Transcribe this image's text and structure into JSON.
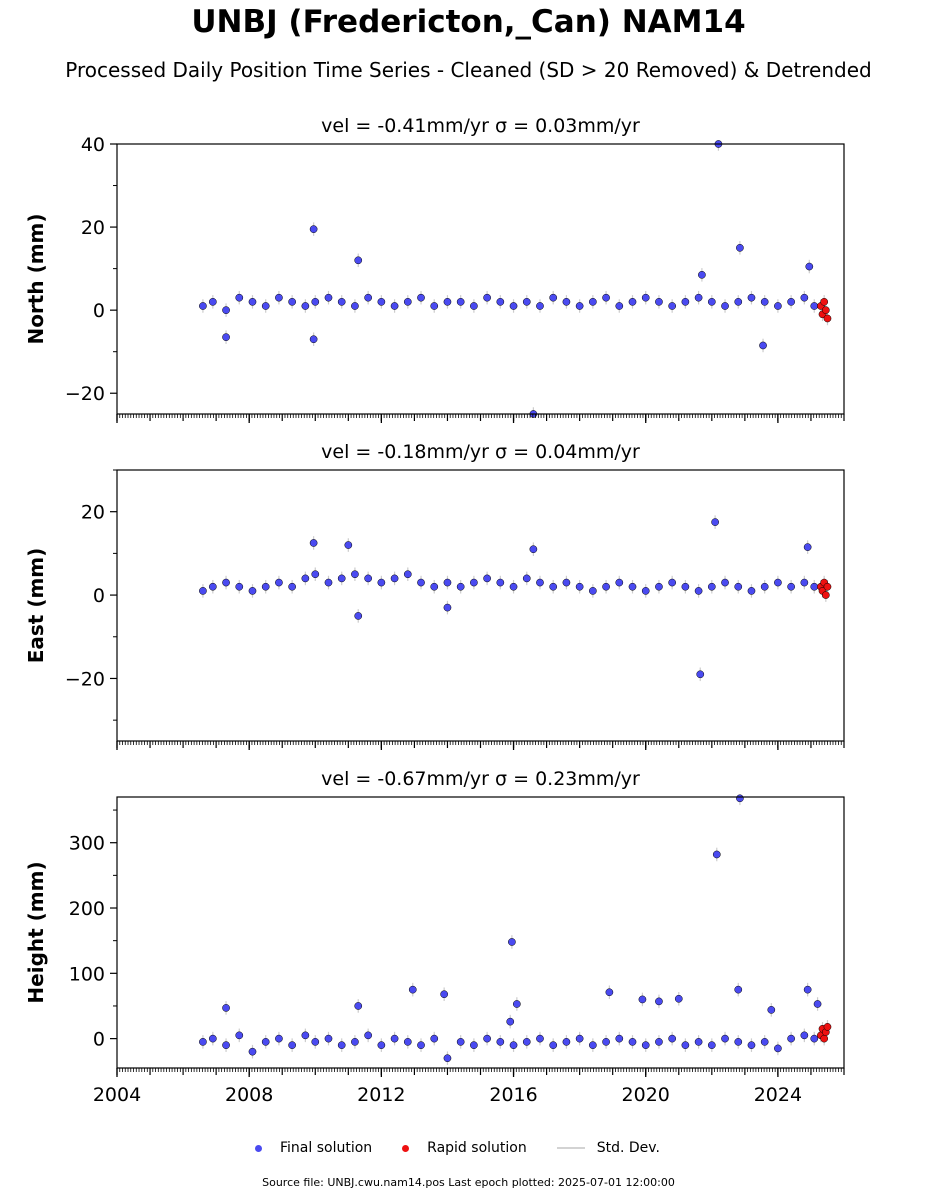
{
  "title": "UNBJ (Fredericton,_Can) NAM14",
  "subtitle": "Processed Daily Position Time Series - Cleaned (SD > 20 Removed) & Detrended",
  "footer": "Source file: UNBJ.cwu.nam14.pos  Last epoch plotted: 2025-07-01 12:00:00",
  "legend": {
    "final": "Final solution",
    "rapid": "Rapid solution",
    "std": "Std. Dev."
  },
  "colors": {
    "final": "#4a4af0",
    "rapid": "#ee1111",
    "std": "#cccccc",
    "edge": "#000000"
  },
  "chart_data": [
    {
      "type": "scatter",
      "title": "vel = -0.41mm/yr   σ = 0.03mm/yr",
      "ylabel": "North (mm)",
      "xlim": [
        2004.0,
        2026.0
      ],
      "ylim": [
        -25,
        40
      ],
      "yticks": [
        -20,
        0,
        20,
        40
      ],
      "xticks": [
        2004,
        2008,
        2012,
        2016,
        2020,
        2024
      ],
      "show_xtick_labels": false,
      "series": [
        {
          "name": "Final solution",
          "x": [
            2006.6,
            2006.9,
            2007.3,
            2007.7,
            2008.1,
            2008.5,
            2008.9,
            2009.3,
            2009.7,
            2010.0,
            2010.4,
            2010.8,
            2011.2,
            2011.6,
            2012.0,
            2012.4,
            2012.8,
            2013.2,
            2013.6,
            2014.0,
            2014.4,
            2014.8,
            2015.2,
            2015.6,
            2016.0,
            2016.4,
            2016.8,
            2017.2,
            2017.6,
            2018.0,
            2018.4,
            2018.8,
            2019.2,
            2019.6,
            2020.0,
            2020.4,
            2020.8,
            2021.2,
            2021.6,
            2022.0,
            2022.4,
            2022.8,
            2023.2,
            2023.6,
            2024.0,
            2024.4,
            2024.8,
            2025.1,
            2009.95,
            2011.3,
            2022.2,
            2022.85,
            2021.7,
            2009.95,
            2007.3,
            2016.6,
            2023.55,
            2024.95
          ],
          "y": [
            1,
            2,
            0,
            3,
            2,
            1,
            3,
            2,
            1,
            2,
            3,
            2,
            1,
            3,
            2,
            1,
            2,
            3,
            1,
            2,
            2,
            1,
            3,
            2,
            1,
            2,
            1,
            3,
            2,
            1,
            2,
            3,
            1,
            2,
            3,
            2,
            1,
            2,
            3,
            2,
            1,
            2,
            3,
            2,
            1,
            2,
            3,
            1,
            19.5,
            12,
            40,
            15,
            8.5,
            -7,
            -6.5,
            -25,
            -8.5,
            10.5
          ]
        },
        {
          "name": "Rapid solution",
          "x": [
            2025.3,
            2025.35,
            2025.4,
            2025.45,
            2025.5
          ],
          "y": [
            1,
            -1,
            2,
            0,
            -2
          ]
        }
      ]
    },
    {
      "type": "scatter",
      "title": "vel = -0.18mm/yr   σ = 0.04mm/yr",
      "ylabel": "East (mm)",
      "xlim": [
        2004.0,
        2026.0
      ],
      "ylim": [
        -35,
        30
      ],
      "yticks": [
        -20,
        0,
        20
      ],
      "xticks": [
        2004,
        2008,
        2012,
        2016,
        2020,
        2024
      ],
      "show_xtick_labels": false,
      "series": [
        {
          "name": "Final solution",
          "x": [
            2006.6,
            2006.9,
            2007.3,
            2007.7,
            2008.1,
            2008.5,
            2008.9,
            2009.3,
            2009.7,
            2010.0,
            2010.4,
            2010.8,
            2011.2,
            2011.6,
            2012.0,
            2012.4,
            2012.8,
            2013.2,
            2013.6,
            2014.0,
            2014.4,
            2014.8,
            2015.2,
            2015.6,
            2016.0,
            2016.4,
            2016.8,
            2017.2,
            2017.6,
            2018.0,
            2018.4,
            2018.8,
            2019.2,
            2019.6,
            2020.0,
            2020.4,
            2020.8,
            2021.2,
            2021.6,
            2022.0,
            2022.4,
            2022.8,
            2023.2,
            2023.6,
            2024.0,
            2024.4,
            2024.8,
            2025.1,
            2009.95,
            2011.0,
            2016.6,
            2022.1,
            2021.65,
            2011.3,
            2024.9,
            2014.0
          ],
          "y": [
            1,
            2,
            3,
            2,
            1,
            2,
            3,
            2,
            4,
            5,
            3,
            4,
            5,
            4,
            3,
            4,
            5,
            3,
            2,
            3,
            2,
            3,
            4,
            3,
            2,
            4,
            3,
            2,
            3,
            2,
            1,
            2,
            3,
            2,
            1,
            2,
            3,
            2,
            1,
            2,
            3,
            2,
            1,
            2,
            3,
            2,
            3,
            2,
            12.5,
            12,
            11,
            17.5,
            -19,
            -5,
            11.5,
            -3
          ]
        },
        {
          "name": "Rapid solution",
          "x": [
            2025.3,
            2025.35,
            2025.4,
            2025.45,
            2025.5
          ],
          "y": [
            2,
            1,
            3,
            0,
            2
          ]
        }
      ]
    },
    {
      "type": "scatter",
      "title": "vel = -0.67mm/yr   σ = 0.23mm/yr",
      "ylabel": "Height (mm)",
      "xlim": [
        2004.0,
        2026.0
      ],
      "ylim": [
        -45,
        370
      ],
      "yticks": [
        0,
        100,
        200,
        300
      ],
      "xticks": [
        2004,
        2008,
        2012,
        2016,
        2020,
        2024
      ],
      "show_xtick_labels": true,
      "series": [
        {
          "name": "Final solution",
          "x": [
            2006.6,
            2006.9,
            2007.3,
            2007.7,
            2008.1,
            2008.5,
            2008.9,
            2009.3,
            2009.7,
            2010.0,
            2010.4,
            2010.8,
            2011.2,
            2011.6,
            2012.0,
            2012.4,
            2012.8,
            2013.2,
            2013.6,
            2014.0,
            2014.4,
            2014.8,
            2015.2,
            2015.6,
            2016.0,
            2016.4,
            2016.8,
            2017.2,
            2017.6,
            2018.0,
            2018.4,
            2018.8,
            2019.2,
            2019.6,
            2020.0,
            2020.4,
            2020.8,
            2021.2,
            2021.6,
            2022.0,
            2022.4,
            2022.8,
            2023.2,
            2023.6,
            2024.0,
            2024.4,
            2024.8,
            2025.1,
            2022.85,
            2022.15,
            2015.95,
            2012.95,
            2013.9,
            2011.3,
            2007.3,
            2016.1,
            2018.9,
            2019.9,
            2020.4,
            2021.0,
            2022.8,
            2023.8,
            2024.9,
            2025.2,
            2015.9
          ],
          "y": [
            -5,
            0,
            -10,
            5,
            -20,
            -5,
            0,
            -10,
            5,
            -5,
            0,
            -10,
            -5,
            5,
            -10,
            0,
            -5,
            -10,
            0,
            -30,
            -5,
            -10,
            0,
            -5,
            -10,
            -5,
            0,
            -10,
            -5,
            0,
            -10,
            -5,
            0,
            -5,
            -10,
            -5,
            0,
            -10,
            -5,
            -10,
            0,
            -5,
            -10,
            -5,
            -15,
            0,
            5,
            0,
            368,
            282,
            148,
            75,
            68,
            50,
            47,
            53,
            71,
            60,
            57,
            61,
            75,
            44,
            75,
            53,
            26
          ]
        },
        {
          "name": "Rapid solution",
          "x": [
            2025.3,
            2025.35,
            2025.4,
            2025.45,
            2025.5
          ],
          "y": [
            5,
            15,
            0,
            10,
            18
          ]
        }
      ]
    }
  ]
}
